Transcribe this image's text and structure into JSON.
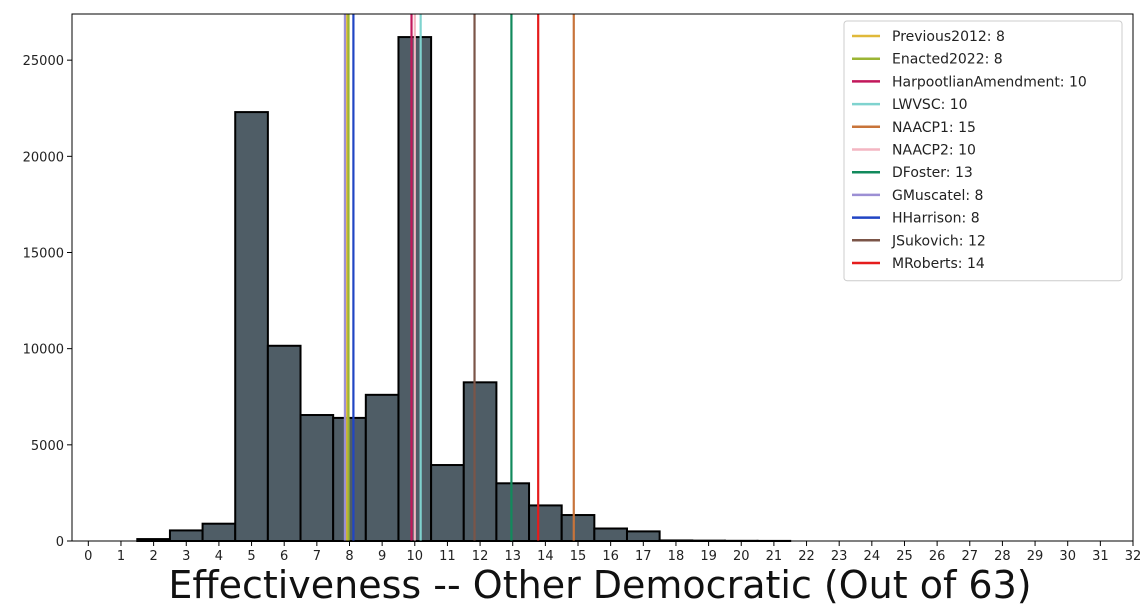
{
  "chart_data": {
    "type": "bar",
    "xlabel": "Effectiveness -- Other Democratic (Out of 63)",
    "ylabel": "",
    "title": "",
    "xlim": [
      -0.5,
      32
    ],
    "ylim": [
      0,
      27400
    ],
    "x_ticks": [
      0,
      1,
      2,
      3,
      4,
      5,
      6,
      7,
      8,
      9,
      10,
      11,
      12,
      13,
      14,
      15,
      16,
      17,
      18,
      19,
      20,
      21,
      22,
      23,
      24,
      25,
      26,
      27,
      28,
      29,
      30,
      31,
      32
    ],
    "y_ticks": [
      0,
      5000,
      10000,
      15000,
      20000,
      25000
    ],
    "bar_color": "#4f5d66",
    "bar_edge_color": "#000000",
    "bins": [
      {
        "x": 2,
        "value": 100
      },
      {
        "x": 3,
        "value": 550
      },
      {
        "x": 4,
        "value": 900
      },
      {
        "x": 5,
        "value": 22300
      },
      {
        "x": 6,
        "value": 10150
      },
      {
        "x": 7,
        "value": 6550
      },
      {
        "x": 8,
        "value": 6400
      },
      {
        "x": 9,
        "value": 7600
      },
      {
        "x": 10,
        "value": 26200
      },
      {
        "x": 11,
        "value": 3950
      },
      {
        "x": 12,
        "value": 8250
      },
      {
        "x": 13,
        "value": 3000
      },
      {
        "x": 14,
        "value": 1850
      },
      {
        "x": 15,
        "value": 1350
      },
      {
        "x": 16,
        "value": 650
      },
      {
        "x": 17,
        "value": 500
      },
      {
        "x": 18,
        "value": 30
      },
      {
        "x": 19,
        "value": 20
      },
      {
        "x": 20,
        "value": 10
      },
      {
        "x": 21,
        "value": 5
      }
    ],
    "vlines": [
      {
        "name": "Previous2012: 8",
        "x": 7.93,
        "color": "#e0b93a"
      },
      {
        "name": "Enacted2022: 8",
        "x": 7.97,
        "color": "#9bb534"
      },
      {
        "name": "HarpootlianAmendment: 10",
        "x": 9.9,
        "color": "#c2185b"
      },
      {
        "name": "LWVSC: 10",
        "x": 10.18,
        "color": "#7fd3cf"
      },
      {
        "name": "NAACP1: 15",
        "x": 14.87,
        "color": "#c8743a"
      },
      {
        "name": "NAACP2: 10",
        "x": 10.0,
        "color": "#f4b6c2"
      },
      {
        "name": "DFoster: 13",
        "x": 12.96,
        "color": "#128a5c"
      },
      {
        "name": "GMuscatel: 8",
        "x": 7.86,
        "color": "#9c8fd4"
      },
      {
        "name": "HHarrison: 8",
        "x": 8.12,
        "color": "#2145c4"
      },
      {
        "name": "JSukovich: 12",
        "x": 11.83,
        "color": "#7b5548"
      },
      {
        "name": "MRoberts: 14",
        "x": 13.78,
        "color": "#e51c1c"
      }
    ],
    "legend_position": "top-right",
    "grid": false
  }
}
